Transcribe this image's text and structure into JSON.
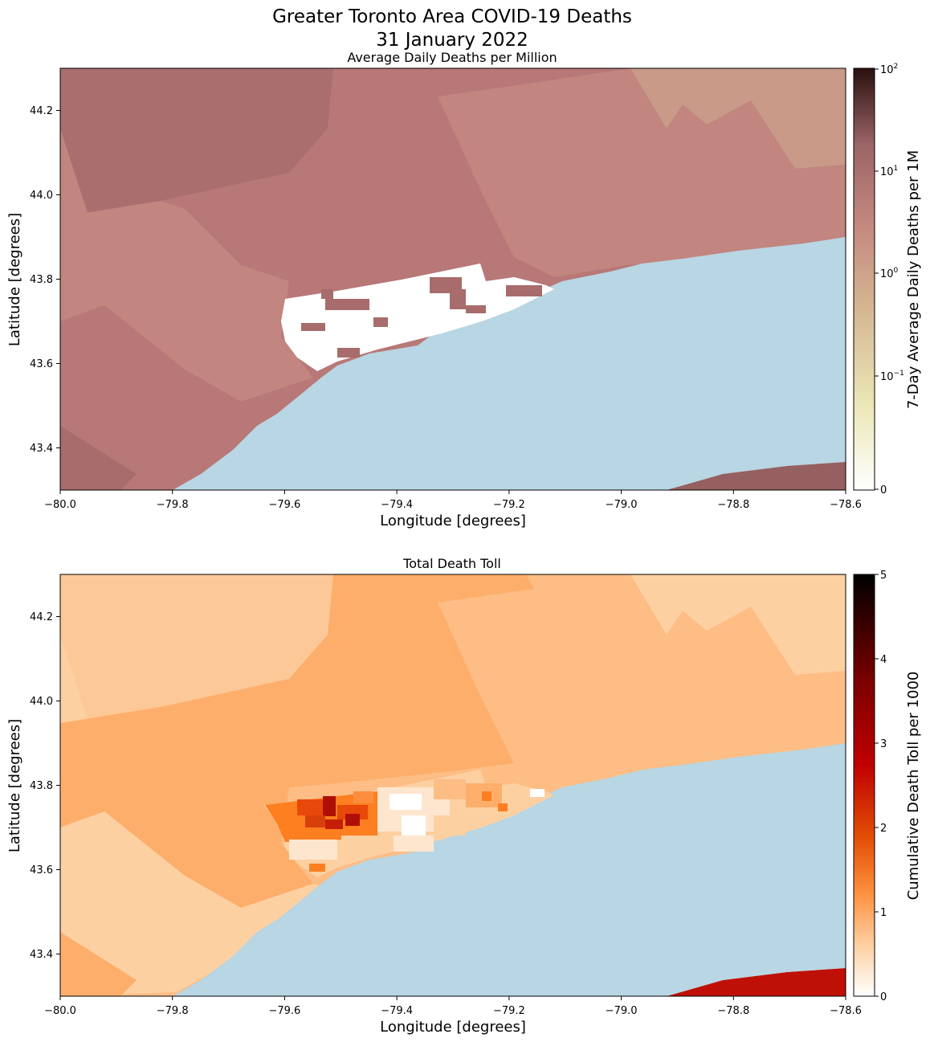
{
  "figure": {
    "title_line1": "Greater Toronto Area COVID-19 Deaths",
    "title_line2": "31 January 2022"
  },
  "colors": {
    "water": "#b8d6e3",
    "top_regions": [
      "#b87878",
      "#c2857f",
      "#a86c6c",
      "#c79a88",
      "#95605f"
    ],
    "bottom_regions": [
      "#fdd0a2",
      "#fdae6b",
      "#fdbd85",
      "#bf1007"
    ]
  },
  "panels": [
    {
      "subtitle": "Average Daily Deaths per Million",
      "xlabel": "Longitude [degrees]",
      "ylabel": "Latitude [degrees]",
      "x_ticks": [
        "−80.0",
        "−79.8",
        "−79.6",
        "−79.4",
        "−79.2",
        "−79.0",
        "−78.8",
        "−78.6"
      ],
      "y_ticks": [
        "43.4",
        "43.6",
        "43.8",
        "44.0",
        "44.2"
      ],
      "colorbar": {
        "label": "7-Day Average Daily Deaths per 1M",
        "scale": "symlog",
        "ticks": [
          {
            "base": "10",
            "exp": "2"
          },
          {
            "base": "10",
            "exp": "1"
          },
          {
            "base": "10",
            "exp": "0"
          },
          {
            "base": "10",
            "exp": "−1"
          },
          {
            "base": "0",
            "exp": ""
          }
        ]
      }
    },
    {
      "subtitle": "Total Death Toll",
      "xlabel": "Longitude [degrees]",
      "ylabel": "Latitude [degrees]",
      "x_ticks": [
        "−80.0",
        "−79.8",
        "−79.6",
        "−79.4",
        "−79.2",
        "−79.0",
        "−78.8",
        "−78.6"
      ],
      "y_ticks": [
        "43.4",
        "43.6",
        "43.8",
        "44.0",
        "44.2"
      ],
      "colorbar": {
        "label": "Cumulative Death Toll per 1000",
        "scale": "linear",
        "range": [
          0,
          5
        ],
        "ticks": [
          "5",
          "4",
          "3",
          "2",
          "1",
          "0"
        ]
      }
    }
  ],
  "chart_data": [
    {
      "type": "heatmap",
      "title": "Average Daily Deaths per Million",
      "xlabel": "Longitude [degrees]",
      "ylabel": "Latitude [degrees]",
      "xlim": [
        -80.0,
        -78.6
      ],
      "ylim": [
        43.3,
        44.3
      ],
      "colorbar_label": "7-Day Average Daily Deaths per 1M",
      "colorbar_scale": "symlog",
      "colorbar_range": [
        0,
        100
      ]
    },
    {
      "type": "heatmap",
      "title": "Total Death Toll",
      "xlabel": "Longitude [degrees]",
      "ylabel": "Latitude [degrees]",
      "xlim": [
        -80.0,
        -78.6
      ],
      "ylim": [
        43.3,
        44.3
      ],
      "colorbar_label": "Cumulative Death Toll per 1000",
      "colorbar_scale": "linear",
      "colorbar_range": [
        0,
        5
      ]
    }
  ]
}
